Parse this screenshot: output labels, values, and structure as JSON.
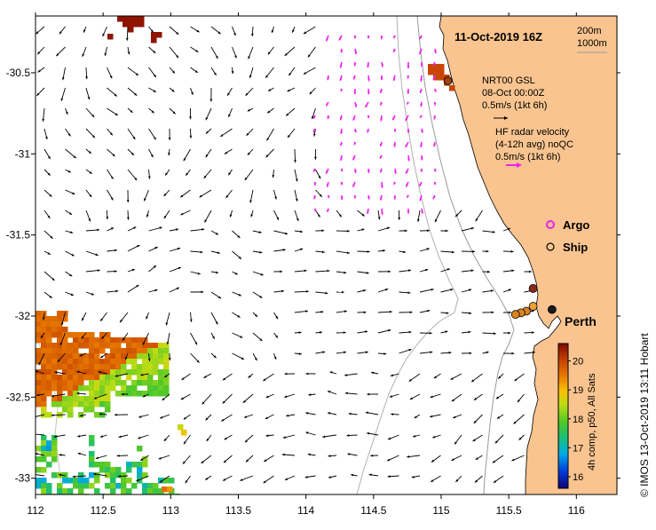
{
  "title": "11-Oct-2019 16Z",
  "isobaths": [
    "200m",
    "1000m"
  ],
  "legend": {
    "nrt_title": "NRT00 GSL",
    "nrt_date": "08-Oct 00:00Z",
    "nrt_scale": "0.5m/s (1kt 6h)",
    "hf_line1": "HF radar velocity",
    "hf_line2": "(4-12h avg) noQC",
    "hf_scale": "0.5m/s (1kt 6h)",
    "argo": "Argo",
    "ship": "Ship"
  },
  "place": "Perth",
  "colorbar": {
    "label": "4h comp, p50, All Sats",
    "ticks": [
      16,
      17,
      18,
      19,
      20
    ],
    "range": [
      15.6,
      20.6
    ]
  },
  "credit": "© IMOS 13-Oct-2019 13:11 Hobart",
  "axes": {
    "x": {
      "ticks": [
        112,
        112.5,
        113,
        113.5,
        114,
        114.5,
        115,
        115.5,
        116
      ],
      "labels": [
        "112",
        "112.5",
        "113",
        "113.5",
        "114",
        "114.5",
        "115",
        "115.5",
        "116"
      ],
      "range": [
        112,
        116.3
      ]
    },
    "y": {
      "ticks": [
        -30.5,
        -31,
        -31.5,
        -32,
        -32.5,
        -33
      ],
      "labels": [
        "-30.5",
        "-31",
        "-31.5",
        "-32",
        "-32.5",
        "-33"
      ],
      "range": [
        -33.1,
        -30.15
      ]
    }
  },
  "colors": {
    "land": "#f9c48f",
    "nrt_arrow": "#000000",
    "hf_arrow": "#ee22ee",
    "isobath": "#9a9a9a",
    "argo": "#ee22ee",
    "ship": "#000000"
  },
  "markers": [
    {
      "lon": 115.68,
      "lat": -31.83,
      "color": "#8b2a1a"
    },
    {
      "lon": 115.82,
      "lat": -31.96,
      "color": "#1a1a1a"
    },
    {
      "lon": 115.63,
      "lat": -31.97,
      "color": "#d8851e"
    },
    {
      "lon": 115.59,
      "lat": -31.98,
      "color": "#d8851e"
    },
    {
      "lon": 115.55,
      "lat": -31.99,
      "color": "#d8851e"
    },
    {
      "lon": 115.68,
      "lat": -31.94,
      "color": "#f0a030"
    },
    {
      "lon": 115.05,
      "lat": -30.55,
      "color": "#a04010"
    }
  ],
  "hf_region": {
    "lon": [
      114.15,
      115.2
    ],
    "lat": [
      -31.3,
      -30.15
    ]
  }
}
